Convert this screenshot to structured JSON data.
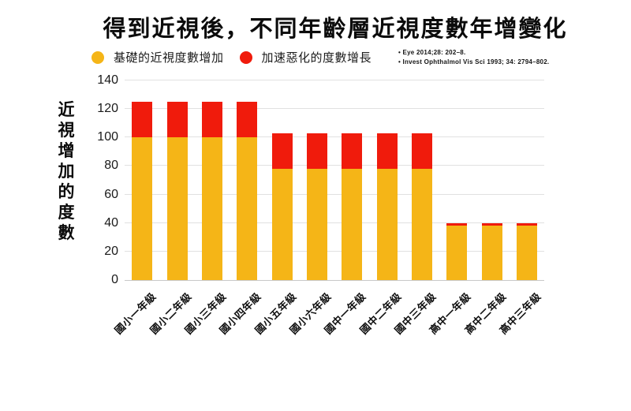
{
  "title": "得到近視後，不同年齡層近視度數年增變化",
  "legend": [
    {
      "label": "基礎的近視度數增加",
      "color": "#F5B517"
    },
    {
      "label": "加速惡化的度數增長",
      "color": "#F01B0C"
    }
  ],
  "references": [
    "• Eye 2014;28: 202–8.",
    "• Invest Ophthalmol Vis Sci 1993; 34: 2794–802."
  ],
  "y_axis_label": "近視增加的度數",
  "chart_data": {
    "type": "bar",
    "stacked": true,
    "title": "得到近視後，不同年齡層近視度數年增變化",
    "xlabel": "",
    "ylabel": "近視增加的度數",
    "categories": [
      "國小一年級",
      "國小二年級",
      "國小三年級",
      "國小四年級",
      "國小五年級",
      "國小六年級",
      "國中一年級",
      "國中二年級",
      "國中三年級",
      "高中一年級",
      "高中二年級",
      "高中三年級"
    ],
    "series": [
      {
        "name": "基礎的近視度數增加",
        "color": "#F5B517",
        "values": [
          100,
          100,
          100,
          100,
          78,
          78,
          78,
          78,
          78,
          38,
          38,
          38
        ]
      },
      {
        "name": "加速惡化的度數增長",
        "color": "#F01B0C",
        "values": [
          25,
          25,
          25,
          25,
          25,
          25,
          25,
          25,
          25,
          2,
          2,
          2
        ]
      }
    ],
    "totals": [
      125,
      125,
      125,
      125,
      103,
      103,
      103,
      103,
      103,
      40,
      40,
      40
    ],
    "ylim": [
      0,
      140
    ],
    "yticks": [
      0,
      20,
      40,
      60,
      80,
      100,
      120,
      140
    ],
    "grid": true,
    "legend_position": "top"
  }
}
